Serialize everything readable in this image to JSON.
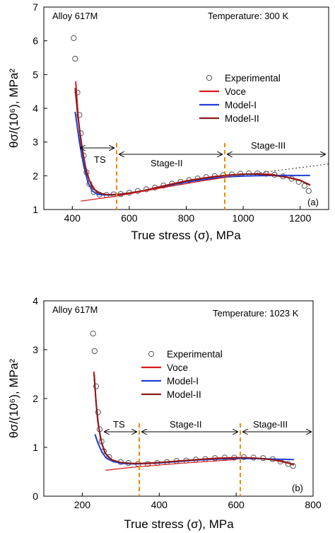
{
  "chart_data": [
    {
      "type": "line",
      "panel_label": "(a)",
      "alloy_label": "Alloy 617M",
      "temperature_label": "Temperature: 300 K",
      "xlabel": "True stress (σ), MPa",
      "ylabel": "θσ/(10⁶), MPa²",
      "xlim": [
        300,
        1300
      ],
      "ylim": [
        1,
        7
      ],
      "x_ticks": [
        "400",
        "600",
        "800",
        "1000",
        "1200"
      ],
      "y_ticks": [
        "1",
        "2",
        "3",
        "4",
        "5",
        "6",
        "7"
      ],
      "stage_labels": [
        "TS",
        "Stage-II",
        "Stage-III"
      ],
      "stage_boundaries": [
        560,
        950
      ],
      "legend": [
        "Experimental",
        "Voce",
        "Model-I",
        "Model-II"
      ],
      "series": [
        {
          "name": "Experimental",
          "marker": "circle",
          "color": "#555555",
          "points": [
            [
              405,
              6.08
            ],
            [
              410,
              5.47
            ],
            [
              418,
              4.47
            ],
            [
              425,
              3.8
            ],
            [
              430,
              3.26
            ],
            [
              440,
              2.6
            ],
            [
              450,
              2.1
            ],
            [
              460,
              1.76
            ],
            [
              475,
              1.52
            ],
            [
              495,
              1.44
            ],
            [
              520,
              1.43
            ],
            [
              545,
              1.45
            ],
            [
              570,
              1.46
            ],
            [
              600,
              1.5
            ],
            [
              630,
              1.55
            ],
            [
              660,
              1.6
            ],
            [
              690,
              1.65
            ],
            [
              720,
              1.71
            ],
            [
              750,
              1.77
            ],
            [
              780,
              1.82
            ],
            [
              810,
              1.87
            ],
            [
              840,
              1.92
            ],
            [
              870,
              1.96
            ],
            [
              900,
              1.99
            ],
            [
              930,
              2.02
            ],
            [
              960,
              2.04
            ],
            [
              990,
              2.06
            ],
            [
              1020,
              2.07
            ],
            [
              1050,
              2.07
            ],
            [
              1080,
              2.06
            ],
            [
              1110,
              2.03
            ],
            [
              1140,
              1.98
            ],
            [
              1170,
              1.91
            ],
            [
              1195,
              1.82
            ],
            [
              1215,
              1.7
            ],
            [
              1230,
              1.55
            ]
          ]
        },
        {
          "name": "Voce",
          "color": "#d91b1b",
          "points": [
            [
              412,
              4.8
            ],
            [
              420,
              3.8
            ],
            [
              430,
              3.0
            ],
            [
              445,
              2.3
            ],
            [
              460,
              1.85
            ],
            [
              480,
              1.58
            ],
            [
              500,
              1.47
            ],
            [
              530,
              1.43
            ],
            [
              560,
              1.44
            ],
            [
              600,
              1.48
            ],
            [
              650,
              1.56
            ],
            [
              700,
              1.66
            ],
            [
              750,
              1.76
            ],
            [
              800,
              1.85
            ],
            [
              850,
              1.92
            ],
            [
              900,
              1.98
            ],
            [
              950,
              2.02
            ],
            [
              1000,
              2.05
            ],
            [
              1050,
              2.06
            ],
            [
              1100,
              2.04
            ],
            [
              1150,
              1.97
            ],
            [
              1200,
              1.87
            ],
            [
              1235,
              1.72
            ]
          ]
        },
        {
          "name": "Model-I",
          "color": "#1f3ed8",
          "points": [
            [
              410,
              3.9
            ],
            [
              425,
              3.0
            ],
            [
              440,
              2.3
            ],
            [
              455,
              1.8
            ],
            [
              470,
              1.55
            ],
            [
              490,
              1.45
            ],
            [
              520,
              1.43
            ],
            [
              560,
              1.44
            ],
            [
              600,
              1.48
            ],
            [
              650,
              1.55
            ],
            [
              700,
              1.64
            ],
            [
              750,
              1.73
            ],
            [
              800,
              1.81
            ],
            [
              850,
              1.88
            ],
            [
              900,
              1.93
            ],
            [
              950,
              1.97
            ],
            [
              1000,
              1.99
            ],
            [
              1050,
              2.0
            ],
            [
              1100,
              2.01
            ],
            [
              1150,
              2.01
            ],
            [
              1200,
              2.01
            ],
            [
              1235,
              2.01
            ]
          ]
        },
        {
          "name": "Model-II",
          "color": "#8b1a1a",
          "points": [
            [
              410,
              4.6
            ],
            [
              420,
              3.7
            ],
            [
              435,
              2.8
            ],
            [
              450,
              2.1
            ],
            [
              470,
              1.65
            ],
            [
              490,
              1.5
            ],
            [
              520,
              1.44
            ],
            [
              560,
              1.45
            ],
            [
              600,
              1.49
            ],
            [
              650,
              1.56
            ],
            [
              700,
              1.65
            ],
            [
              750,
              1.75
            ],
            [
              800,
              1.84
            ],
            [
              850,
              1.91
            ],
            [
              900,
              1.97
            ],
            [
              950,
              2.02
            ],
            [
              1000,
              2.05
            ],
            [
              1050,
              2.05
            ],
            [
              1100,
              2.02
            ],
            [
              1150,
              1.96
            ],
            [
              1200,
              1.86
            ],
            [
              1235,
              1.73
            ]
          ]
        },
        {
          "name": "Stage-II fit",
          "color": "#d91b1b",
          "style": "solid",
          "points": [
            [
              430,
              1.25
            ],
            [
              560,
              1.4
            ],
            [
              700,
              1.62
            ],
            [
              850,
              1.84
            ],
            [
              950,
              1.97
            ]
          ]
        },
        {
          "name": "Stage-III extrapolation",
          "color": "#444444",
          "style": "dotted",
          "points": [
            [
              950,
              1.97
            ],
            [
              1300,
              2.35
            ]
          ]
        }
      ]
    },
    {
      "type": "line",
      "panel_label": "(b)",
      "alloy_label": "Alloy 617M",
      "temperature_label": "Temperature: 1023 K",
      "xlabel": "True stress (σ), MPa",
      "ylabel": "θσ/(10⁶), MPa²",
      "xlim": [
        100,
        800
      ],
      "ylim": [
        0,
        4
      ],
      "x_ticks": [
        "200",
        "400",
        "600",
        "800"
      ],
      "y_ticks": [
        "0",
        "1",
        "2",
        "3",
        "4"
      ],
      "stage_labels": [
        "TS",
        "Stage-II",
        "Stage-III"
      ],
      "stage_boundaries": [
        340,
        600
      ],
      "legend": [
        "Experimental",
        "Voce",
        "Model-I",
        "Model-II"
      ],
      "series": [
        {
          "name": "Experimental",
          "marker": "circle",
          "color": "#555555",
          "points": [
            [
              228,
              3.33
            ],
            [
              232,
              2.97
            ],
            [
              236,
              2.25
            ],
            [
              241,
              1.72
            ],
            [
              245,
              1.37
            ],
            [
              250,
              1.12
            ],
            [
              256,
              0.92
            ],
            [
              270,
              0.8
            ],
            [
              300,
              0.7
            ],
            [
              320,
              0.68
            ],
            [
              345,
              0.66
            ],
            [
              370,
              0.66
            ],
            [
              395,
              0.68
            ],
            [
              420,
              0.7
            ],
            [
              445,
              0.72
            ],
            [
              470,
              0.73
            ],
            [
              495,
              0.75
            ],
            [
              520,
              0.76
            ],
            [
              545,
              0.78
            ],
            [
              570,
              0.79
            ],
            [
              595,
              0.79
            ],
            [
              620,
              0.8
            ],
            [
              645,
              0.79
            ],
            [
              670,
              0.78
            ],
            [
              695,
              0.76
            ],
            [
              715,
              0.71
            ],
            [
              735,
              0.66
            ],
            [
              748,
              0.62
            ]
          ]
        },
        {
          "name": "Voce",
          "color": "#d91b1b",
          "points": [
            [
              230,
              2.55
            ],
            [
              235,
              2.0
            ],
            [
              240,
              1.55
            ],
            [
              248,
              1.15
            ],
            [
              258,
              0.9
            ],
            [
              272,
              0.76
            ],
            [
              295,
              0.69
            ],
            [
              320,
              0.67
            ],
            [
              350,
              0.67
            ],
            [
              400,
              0.69
            ],
            [
              450,
              0.72
            ],
            [
              500,
              0.75
            ],
            [
              550,
              0.78
            ],
            [
              600,
              0.79
            ],
            [
              650,
              0.78
            ],
            [
              700,
              0.74
            ],
            [
              750,
              0.65
            ]
          ]
        },
        {
          "name": "Model-I",
          "color": "#1f3ed8",
          "points": [
            [
              233,
              1.27
            ],
            [
              240,
              1.1
            ],
            [
              250,
              0.92
            ],
            [
              262,
              0.78
            ],
            [
              280,
              0.71
            ],
            [
              305,
              0.67
            ],
            [
              340,
              0.66
            ],
            [
              400,
              0.68
            ],
            [
              450,
              0.71
            ],
            [
              500,
              0.74
            ],
            [
              550,
              0.76
            ],
            [
              600,
              0.77
            ],
            [
              650,
              0.77
            ],
            [
              700,
              0.76
            ],
            [
              750,
              0.75
            ]
          ]
        },
        {
          "name": "Model-II",
          "color": "#8b1a1a",
          "points": [
            [
              231,
              2.5
            ],
            [
              236,
              1.9
            ],
            [
              242,
              1.45
            ],
            [
              250,
              1.1
            ],
            [
              260,
              0.88
            ],
            [
              275,
              0.75
            ],
            [
              300,
              0.69
            ],
            [
              330,
              0.67
            ],
            [
              370,
              0.67
            ],
            [
              420,
              0.7
            ],
            [
              470,
              0.73
            ],
            [
              520,
              0.76
            ],
            [
              570,
              0.78
            ],
            [
              620,
              0.79
            ],
            [
              670,
              0.77
            ],
            [
              720,
              0.72
            ],
            [
              750,
              0.64
            ]
          ]
        },
        {
          "name": "Stage-II fit",
          "color": "#d91b1b",
          "style": "solid",
          "points": [
            [
              260,
              0.53
            ],
            [
              340,
              0.6
            ],
            [
              450,
              0.67
            ],
            [
              600,
              0.75
            ]
          ]
        }
      ]
    }
  ]
}
